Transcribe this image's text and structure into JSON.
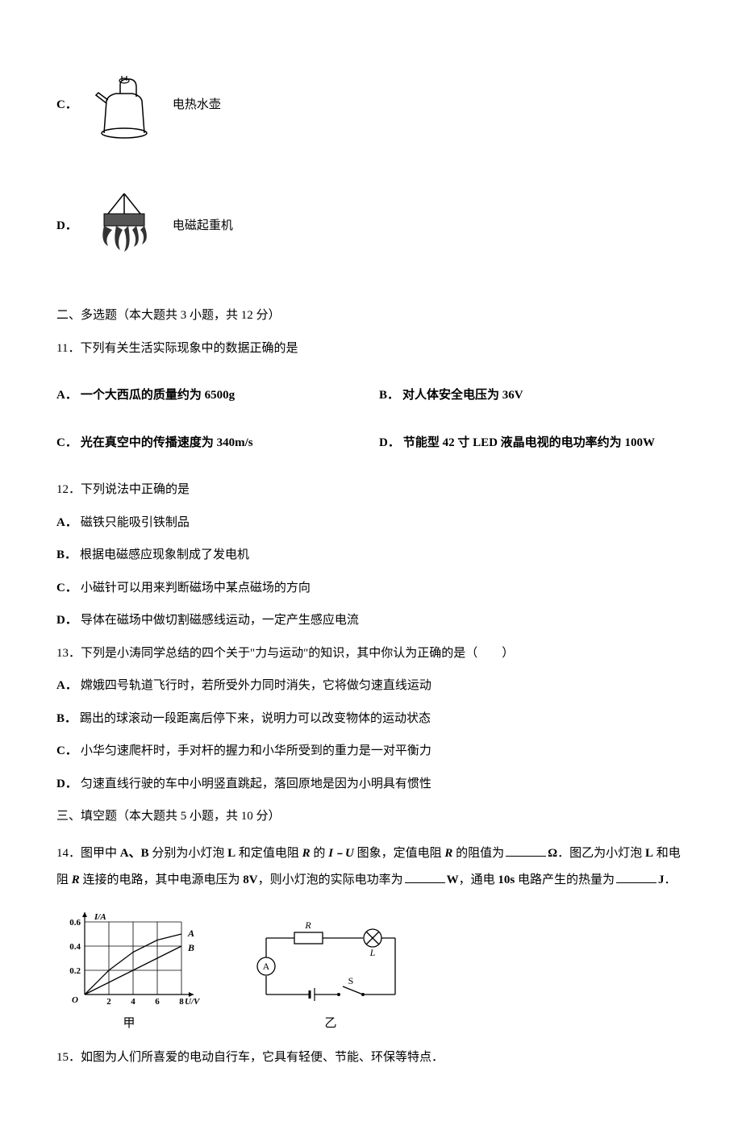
{
  "option_c": {
    "letter": "C．",
    "label": "电热水壶",
    "icon": "kettle-icon"
  },
  "option_d": {
    "letter": "D．",
    "label": "电磁起重机",
    "icon": "crane-icon"
  },
  "section2": {
    "header": "二、多选题（本大题共 3 小题，共 12 分）"
  },
  "q11": {
    "stem": "11．下列有关生活实际现象中的数据正确的是",
    "a": "一个大西瓜的质量约为 6500g",
    "b": "对人体安全电压为 36V",
    "c": "光在真空中的传播速度为 340m/s",
    "d": "节能型 42 寸 LED 液晶电视的电功率约为 100W"
  },
  "q12": {
    "stem": "12．下列说法中正确的是",
    "a": "磁铁只能吸引铁制品",
    "b": "根据电磁感应现象制成了发电机",
    "c": "小磁针可以用来判断磁场中某点磁场的方向",
    "d": "导体在磁场中做切割磁感线运动，一定产生感应电流"
  },
  "q13": {
    "stem": "13．下列是小涛同学总结的四个关于\"力与运动\"的知识，其中你认为正确的是（　　）",
    "a": "嫦娥四号轨道飞行时，若所受外力同时消失，它将做匀速直线运动",
    "b": "踢出的球滚动一段距离后停下来，说明力可以改变物体的运动状态",
    "c": "小华匀速爬杆时，手对杆的握力和小华所受到的重力是一对平衡力",
    "d": "匀速直线行驶的车中小明竖直跳起，落回原地是因为小明具有惯性"
  },
  "section3": {
    "header": "三、填空题（本大题共 5 小题，共 10 分）"
  },
  "q14": {
    "prefix": "14．图甲中 ",
    "part_ab": "A、B",
    "text1": " 分别为小灯泡 ",
    "L": "L",
    "text2": " 和定值电阻 ",
    "R": "R",
    "text3": " 的 ",
    "IU": "I﹣U",
    "text4": " 图象，定值电阻 ",
    "text5": " 的阻值为",
    "unit1": "Ω",
    "text6": "．图乙为小灯泡 ",
    "text7": " 和电",
    "text8": "阻 ",
    "text9": " 连接的电路，其中电源电压为 ",
    "volt": "8V",
    "text10": "，则小灯泡的实际电功率为",
    "unit2": "W",
    "text11": "，通电 ",
    "time": "10s",
    "text12": " 电路产生的热量为",
    "unit3": "J",
    "text13": "．"
  },
  "q15": {
    "stem": "15．如图为人们所喜爱的电动自行车，它具有轻便、节能、环保等特点．"
  },
  "chart": {
    "type": "line",
    "ylabel": "I/A",
    "xlabel": "U/V",
    "caption": "甲",
    "ylim": [
      0,
      0.6
    ],
    "xlim": [
      0,
      8
    ],
    "yticks": [
      "0.2",
      "0.4",
      "0.6"
    ],
    "xticks": [
      "2",
      "4",
      "6",
      "8"
    ],
    "origin": "O",
    "series_a_label": "A",
    "series_b_label": "B",
    "grid_color": "#000000",
    "line_color": "#000000",
    "background": "#ffffff",
    "series_a": [
      [
        0,
        0
      ],
      [
        2,
        0.2
      ],
      [
        4,
        0.35
      ],
      [
        6,
        0.45
      ],
      [
        8,
        0.5
      ]
    ],
    "series_b": [
      [
        0,
        0
      ],
      [
        8,
        0.4
      ]
    ]
  },
  "circuit": {
    "caption": "乙",
    "resistor_label": "R",
    "lamp_label": "L",
    "ammeter_label": "A",
    "switch_label": "S",
    "line_color": "#000000"
  },
  "letters": {
    "A": "A．",
    "B": "B．",
    "C": "C．",
    "D": "D．"
  }
}
